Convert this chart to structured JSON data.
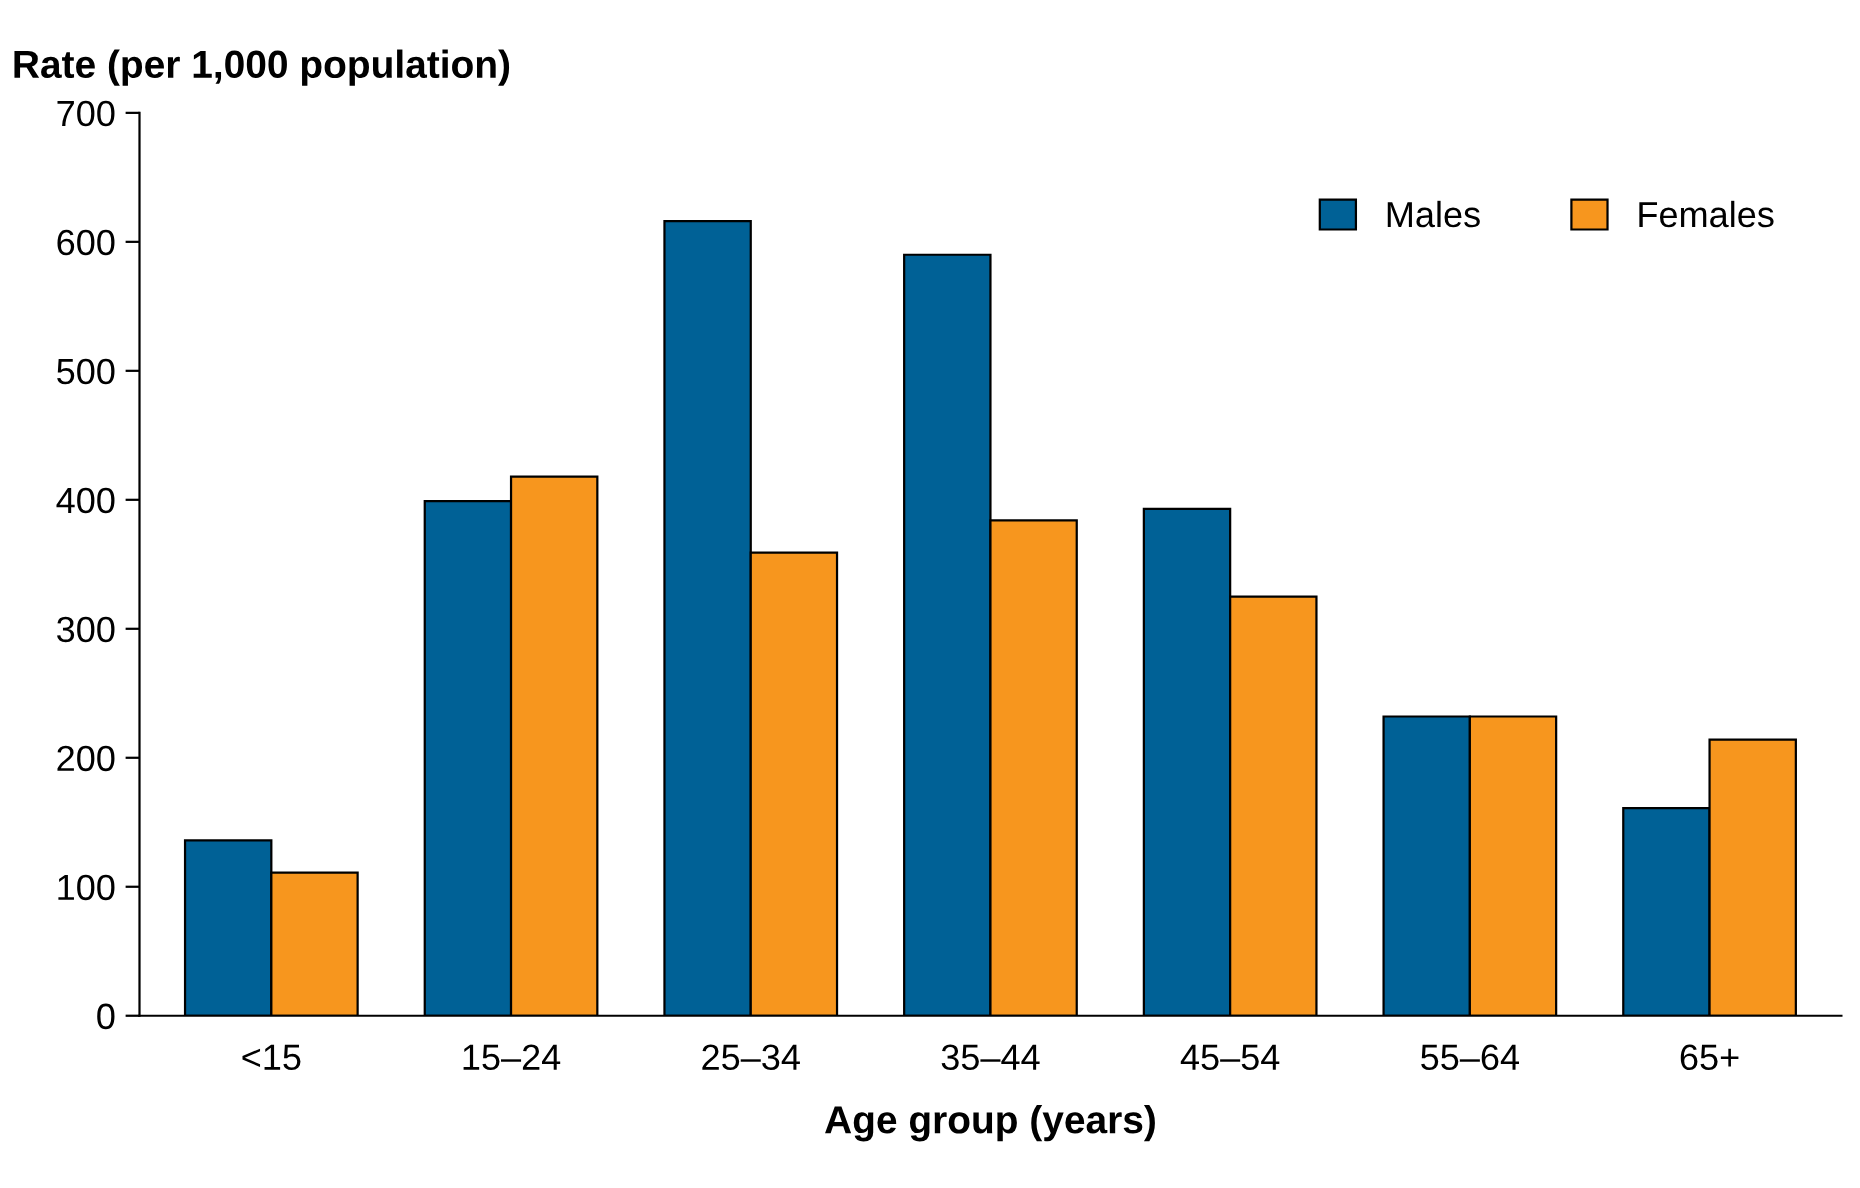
{
  "chart_data": {
    "type": "bar",
    "ylabel": "Rate (per 1,000 population)",
    "xlabel": "Age group (years)",
    "categories": [
      "<15",
      "15–24",
      "25–34",
      "35–44",
      "45–54",
      "55–64",
      "65+"
    ],
    "series": [
      {
        "name": "Males",
        "color": "#006196",
        "values": [
          136,
          399,
          616,
          590,
          393,
          232,
          161
        ]
      },
      {
        "name": "Females",
        "color": "#f7961e",
        "values": [
          111,
          418,
          359,
          384,
          325,
          232,
          214
        ]
      }
    ],
    "ylim": [
      0,
      700
    ],
    "yticks": [
      0,
      100,
      200,
      300,
      400,
      500,
      600,
      700
    ],
    "grid": false,
    "legend": "top right"
  }
}
